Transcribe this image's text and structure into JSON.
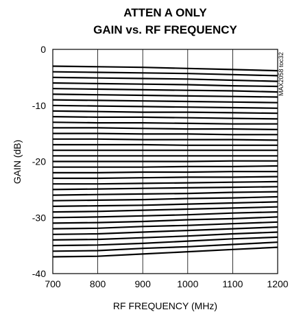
{
  "chart_data": {
    "type": "line",
    "title_lines": [
      "ATTEN A ONLY",
      "GAIN vs. RF FREQUENCY"
    ],
    "xlabel": "RF FREQUENCY (MHz)",
    "ylabel": "GAIN (dB)",
    "xlim": [
      700,
      1200
    ],
    "ylim": [
      -40,
      0
    ],
    "xticks": [
      700,
      800,
      900,
      1000,
      1100,
      1200
    ],
    "yticks": [
      0,
      -10,
      -20,
      -30,
      -40
    ],
    "grid": "vertical",
    "watermark": "MAX2058 toc32",
    "x": [
      700,
      800,
      900,
      1000,
      1100,
      1200
    ],
    "series": [
      {
        "values": [
          -3.0,
          -3.1,
          -3.2,
          -3.4,
          -3.6,
          -3.8
        ]
      },
      {
        "values": [
          -4.0,
          -4.1,
          -4.2,
          -4.3,
          -4.5,
          -4.7
        ]
      },
      {
        "values": [
          -5.0,
          -5.1,
          -5.2,
          -5.3,
          -5.5,
          -5.7
        ]
      },
      {
        "values": [
          -6.0,
          -6.1,
          -6.2,
          -6.3,
          -6.5,
          -6.6
        ]
      },
      {
        "values": [
          -7.0,
          -7.1,
          -7.2,
          -7.3,
          -7.4,
          -7.6
        ]
      },
      {
        "values": [
          -8.0,
          -8.1,
          -8.2,
          -8.3,
          -8.4,
          -8.5
        ]
      },
      {
        "values": [
          -9.0,
          -9.1,
          -9.2,
          -9.3,
          -9.4,
          -9.5
        ]
      },
      {
        "values": [
          -10.0,
          -10.1,
          -10.2,
          -10.3,
          -10.4,
          -10.5
        ]
      },
      {
        "values": [
          -11.0,
          -11.1,
          -11.2,
          -11.2,
          -11.3,
          -11.4
        ]
      },
      {
        "values": [
          -12.0,
          -12.1,
          -12.1,
          -12.2,
          -12.3,
          -12.4
        ]
      },
      {
        "values": [
          -13.0,
          -13.1,
          -13.1,
          -13.2,
          -13.3,
          -13.3
        ]
      },
      {
        "values": [
          -14.0,
          -14.0,
          -14.1,
          -14.2,
          -14.2,
          -14.3
        ]
      },
      {
        "values": [
          -15.0,
          -15.0,
          -15.1,
          -15.1,
          -15.2,
          -15.2
        ]
      },
      {
        "values": [
          -16.0,
          -16.0,
          -16.1,
          -16.1,
          -16.1,
          -16.2
        ]
      },
      {
        "values": [
          -17.0,
          -17.0,
          -17.0,
          -17.1,
          -17.1,
          -17.1
        ]
      },
      {
        "values": [
          -18.0,
          -18.0,
          -18.0,
          -18.0,
          -18.0,
          -18.0
        ]
      },
      {
        "values": [
          -19.0,
          -19.0,
          -19.0,
          -19.0,
          -19.0,
          -19.0
        ]
      },
      {
        "values": [
          -20.0,
          -20.0,
          -20.0,
          -20.0,
          -19.9,
          -19.9
        ]
      },
      {
        "values": [
          -21.0,
          -21.0,
          -21.0,
          -20.9,
          -20.9,
          -20.8
        ]
      },
      {
        "values": [
          -22.0,
          -22.0,
          -21.9,
          -21.9,
          -21.8,
          -21.8
        ]
      },
      {
        "values": [
          -23.0,
          -23.0,
          -22.9,
          -22.8,
          -22.8,
          -22.7
        ]
      },
      {
        "values": [
          -24.0,
          -24.0,
          -23.9,
          -23.8,
          -23.7,
          -23.6
        ]
      },
      {
        "values": [
          -25.0,
          -24.9,
          -24.8,
          -24.7,
          -24.6,
          -24.5
        ]
      },
      {
        "values": [
          -26.0,
          -25.9,
          -25.8,
          -25.7,
          -25.5,
          -25.4
        ]
      },
      {
        "values": [
          -27.0,
          -26.9,
          -26.8,
          -26.6,
          -26.5,
          -26.3
        ]
      },
      {
        "values": [
          -28.0,
          -27.9,
          -27.8,
          -27.6,
          -27.4,
          -27.2
        ]
      },
      {
        "values": [
          -29.0,
          -28.9,
          -28.7,
          -28.5,
          -28.3,
          -28.1
        ]
      },
      {
        "values": [
          -30.0,
          -29.9,
          -29.7,
          -29.5,
          -29.2,
          -29.0
        ]
      },
      {
        "values": [
          -31.0,
          -30.9,
          -30.7,
          -30.4,
          -30.2,
          -29.9
        ]
      },
      {
        "values": [
          -32.0,
          -31.9,
          -31.6,
          -31.4,
          -31.1,
          -30.8
        ]
      },
      {
        "values": [
          -33.0,
          -32.9,
          -32.6,
          -32.3,
          -32.0,
          -31.7
        ]
      },
      {
        "values": [
          -34.0,
          -33.9,
          -33.6,
          -33.3,
          -32.9,
          -32.6
        ]
      },
      {
        "values": [
          -35.0,
          -34.9,
          -34.6,
          -34.2,
          -33.8,
          -33.5
        ]
      },
      {
        "values": [
          -36.0,
          -35.9,
          -35.5,
          -35.2,
          -34.8,
          -34.4
        ]
      },
      {
        "values": [
          -37.0,
          -36.9,
          -36.5,
          -36.1,
          -35.7,
          -35.3
        ]
      }
    ]
  }
}
